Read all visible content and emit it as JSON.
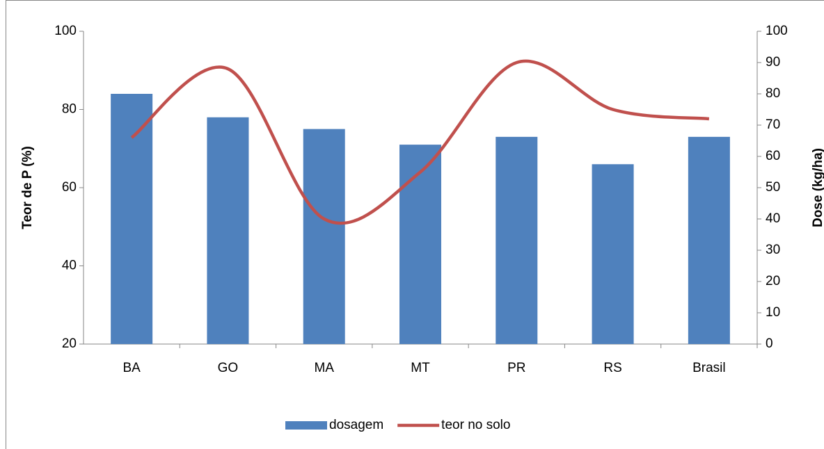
{
  "chart_data": {
    "type": "bar-line",
    "categories": [
      "BA",
      "GO",
      "MA",
      "MT",
      "PR",
      "RS",
      "Brasil"
    ],
    "series": [
      {
        "name": "dosagem",
        "type": "bar",
        "color": "#4f81bd",
        "values": [
          84,
          78,
          75,
          71,
          73,
          66,
          73
        ]
      },
      {
        "name": "teor no solo",
        "type": "line",
        "axis": "y2",
        "smooth": true,
        "color": "#c0504d",
        "values": [
          66,
          88,
          40,
          55,
          90,
          75,
          72
        ]
      }
    ],
    "ylabel": "Teor de P (%)",
    "y2label": "Dose (kg/ha)",
    "ylim": [
      20,
      100
    ],
    "yticks": [
      20,
      40,
      60,
      80,
      100
    ],
    "y2lim": [
      0,
      100
    ],
    "y2ticks": [
      0,
      10,
      20,
      30,
      40,
      50,
      60,
      70,
      80,
      90,
      100
    ],
    "legend": "bottom"
  }
}
